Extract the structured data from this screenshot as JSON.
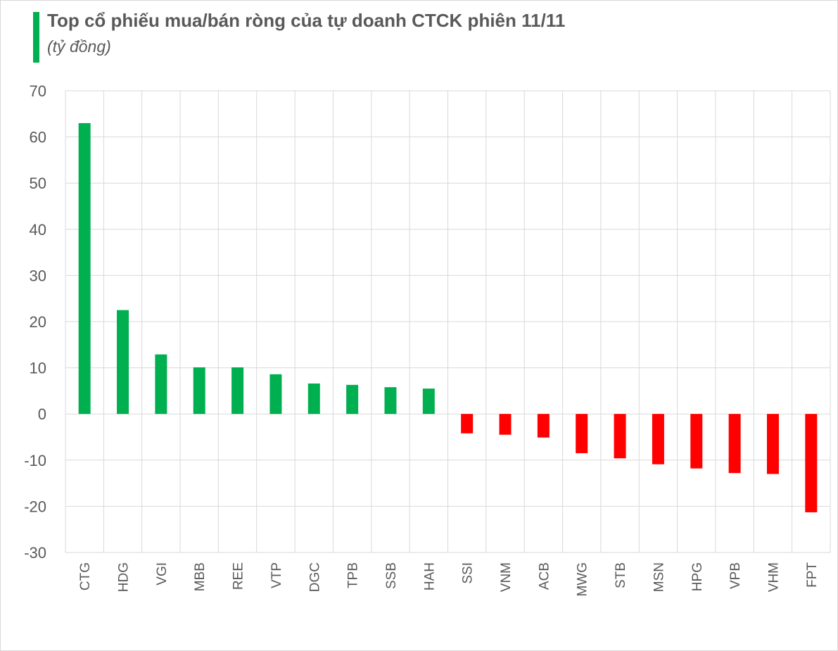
{
  "colors": {
    "accent": "#00b050",
    "positive": "#00b050",
    "negative": "#ff0000",
    "grid": "#d9d9d9",
    "text": "#595959"
  },
  "chart_data": {
    "type": "bar",
    "title": "Top cổ phiếu mua/bán ròng của tự doanh CTCK phiên 11/11",
    "subtitle": "(tỷ đồng)",
    "xlabel": "",
    "ylabel": "",
    "ylim": [
      -30,
      70
    ],
    "yticks": [
      70,
      60,
      50,
      40,
      30,
      20,
      10,
      0,
      -10,
      -20,
      -30
    ],
    "grid": true,
    "legend": "none",
    "categories": [
      "CTG",
      "HDG",
      "VGI",
      "MBB",
      "REE",
      "VTP",
      "DGC",
      "TPB",
      "SSB",
      "HAH",
      "SSI",
      "VNM",
      "ACB",
      "MWG",
      "STB",
      "MSN",
      "HPG",
      "VPB",
      "VHM",
      "FPT"
    ],
    "values": [
      63.0,
      22.5,
      12.9,
      10.1,
      10.1,
      8.6,
      6.6,
      6.3,
      5.8,
      5.5,
      -4.2,
      -4.5,
      -5.1,
      -8.5,
      -9.6,
      -10.9,
      -11.8,
      -12.8,
      -13.0,
      -21.3
    ]
  }
}
